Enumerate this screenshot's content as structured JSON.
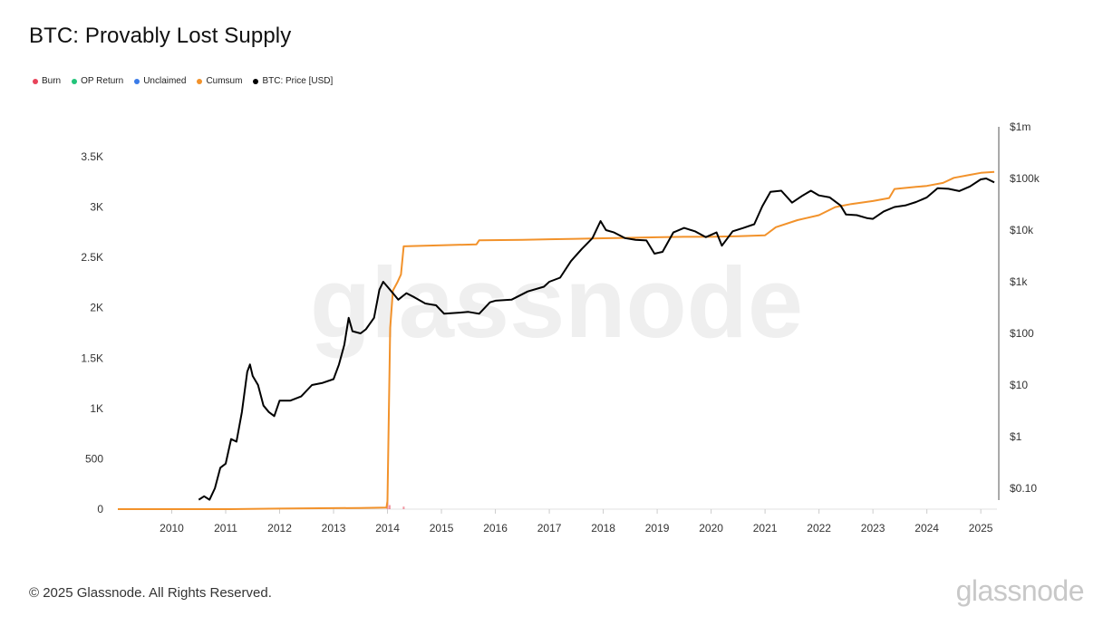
{
  "colors": {
    "burn": "#e8435a",
    "op_return": "#22c47a",
    "unclaimed": "#3a7be8",
    "cumsum": "#f2922b",
    "price": "#000000"
  },
  "footer": {
    "copyright": "© 2025 Glassnode. All Rights Reserved.",
    "brand": "glassnode"
  },
  "chart_data": {
    "type": "line",
    "title": "BTC: Provably Lost Supply",
    "legend": [
      {
        "name": "Burn",
        "color": "#e8435a"
      },
      {
        "name": "OP Return",
        "color": "#22c47a"
      },
      {
        "name": "Unclaimed",
        "color": "#3a7be8"
      },
      {
        "name": "Cumsum",
        "color": "#f2922b"
      },
      {
        "name": "BTC: Price [USD]",
        "color": "#000000"
      }
    ],
    "watermark": "glassnode",
    "x_ticks": [
      "2010",
      "2011",
      "2012",
      "2013",
      "2014",
      "2015",
      "2016",
      "2017",
      "2018",
      "2019",
      "2020",
      "2021",
      "2022",
      "2023",
      "2024",
      "2025"
    ],
    "xlim": [
      2009.0,
      2025.3
    ],
    "y_left": {
      "ticks": [
        0,
        500,
        1000,
        1500,
        2000,
        2500,
        3000,
        3500
      ],
      "tick_labels": [
        "0",
        "500",
        "1K",
        "1.5K",
        "2K",
        "2.5K",
        "3K",
        "3.5K"
      ],
      "ylim": [
        0,
        3500
      ]
    },
    "y_right": {
      "scale": "log",
      "ticks": [
        0.1,
        1,
        10,
        100,
        1000,
        10000,
        100000,
        1000000
      ],
      "tick_labels": [
        "$0.10",
        "$1",
        "$10",
        "$100",
        "$1k",
        "$10k",
        "$100k",
        "$1m"
      ],
      "ylim": [
        0.1,
        1000000
      ]
    },
    "series": [
      {
        "name": "Cumsum",
        "axis": "left",
        "x": [
          2009.0,
          2011.0,
          2012.0,
          2012.5,
          2013.0,
          2013.5,
          2013.98,
          2014.0,
          2014.05,
          2014.1,
          2014.18,
          2014.25,
          2014.3,
          2015.0,
          2015.65,
          2015.7,
          2016.5,
          2017.0,
          2017.5,
          2018.0,
          2018.5,
          2019.0,
          2019.5,
          2020.0,
          2020.5,
          2021.0,
          2021.05,
          2021.2,
          2021.6,
          2022.0,
          2022.3,
          2022.6,
          2023.0,
          2023.3,
          2023.4,
          2023.8,
          2024.0,
          2024.3,
          2024.5,
          2024.8,
          2025.0,
          2025.25
        ],
        "y": [
          0,
          0,
          5,
          8,
          10,
          12,
          15,
          80,
          1800,
          2170,
          2250,
          2330,
          2610,
          2620,
          2630,
          2670,
          2675,
          2680,
          2685,
          2690,
          2695,
          2700,
          2705,
          2705,
          2710,
          2720,
          2740,
          2800,
          2870,
          2920,
          3000,
          3030,
          3060,
          3090,
          3180,
          3200,
          3210,
          3240,
          3290,
          3320,
          3340,
          3350
        ]
      },
      {
        "name": "BTC: Price [USD]",
        "axis": "right",
        "x": [
          2010.5,
          2010.6,
          2010.7,
          2010.8,
          2010.9,
          2011.0,
          2011.1,
          2011.2,
          2011.3,
          2011.4,
          2011.45,
          2011.5,
          2011.6,
          2011.7,
          2011.8,
          2011.9,
          2012.0,
          2012.2,
          2012.4,
          2012.6,
          2012.8,
          2013.0,
          2013.1,
          2013.2,
          2013.28,
          2013.35,
          2013.5,
          2013.6,
          2013.75,
          2013.85,
          2013.92,
          2014.0,
          2014.1,
          2014.2,
          2014.35,
          2014.5,
          2014.7,
          2014.9,
          2015.05,
          2015.3,
          2015.5,
          2015.7,
          2015.9,
          2016.0,
          2016.3,
          2016.6,
          2016.9,
          2017.0,
          2017.2,
          2017.4,
          2017.6,
          2017.8,
          2017.95,
          2018.05,
          2018.2,
          2018.4,
          2018.6,
          2018.8,
          2018.95,
          2019.1,
          2019.3,
          2019.5,
          2019.7,
          2019.9,
          2020.1,
          2020.2,
          2020.4,
          2020.6,
          2020.8,
          2020.95,
          2021.1,
          2021.3,
          2021.5,
          2021.7,
          2021.85,
          2022.0,
          2022.2,
          2022.4,
          2022.5,
          2022.7,
          2022.9,
          2023.0,
          2023.2,
          2023.4,
          2023.6,
          2023.8,
          2024.0,
          2024.2,
          2024.4,
          2024.6,
          2024.8,
          2025.0,
          2025.1,
          2025.25
        ],
        "y": [
          0.06,
          0.07,
          0.06,
          0.1,
          0.25,
          0.3,
          0.9,
          0.8,
          3,
          18,
          25,
          15,
          10,
          4,
          3,
          2.5,
          5,
          5,
          6,
          10,
          11,
          13,
          25,
          60,
          200,
          110,
          100,
          120,
          200,
          700,
          1000,
          800,
          600,
          450,
          600,
          500,
          380,
          350,
          240,
          250,
          260,
          240,
          400,
          430,
          450,
          650,
          800,
          1000,
          1200,
          2500,
          4300,
          7000,
          15000,
          10000,
          9000,
          7000,
          6500,
          6300,
          3500,
          3800,
          9000,
          11000,
          9500,
          7300,
          9000,
          5000,
          9500,
          11000,
          13000,
          29000,
          55000,
          58000,
          34000,
          47000,
          58000,
          47000,
          43000,
          30000,
          20000,
          19500,
          17000,
          16500,
          23000,
          28000,
          30000,
          35000,
          43000,
          65000,
          63000,
          57000,
          70000,
          96000,
          100000,
          84000
        ]
      },
      {
        "name": "Burn",
        "axis": "left",
        "x": [
          2014.0,
          2014.04,
          2014.3
        ],
        "y": [
          70,
          40,
          25
        ]
      }
    ]
  }
}
